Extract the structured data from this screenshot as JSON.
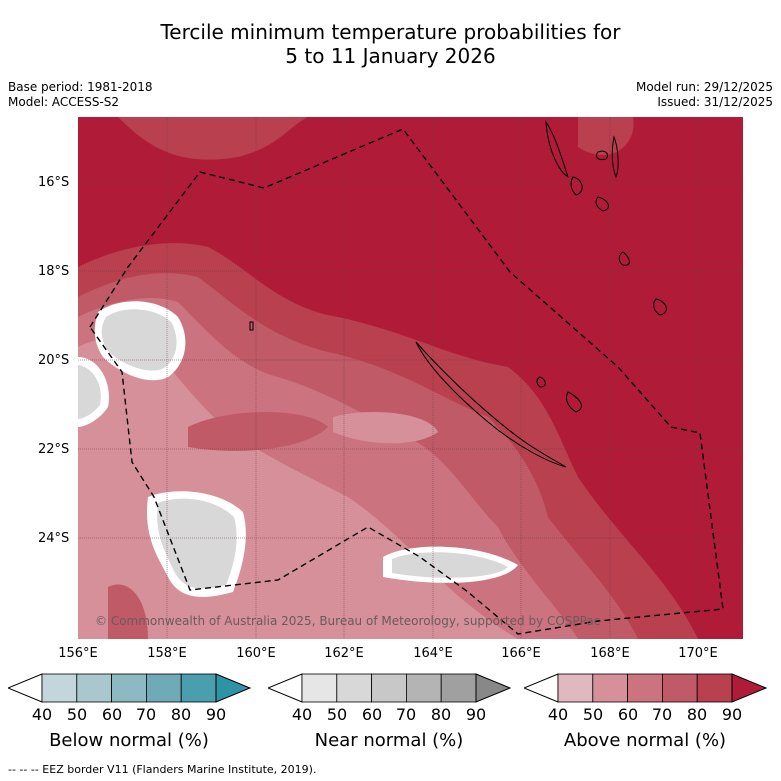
{
  "title_line1": "Tercile minimum temperature probabilities for",
  "title_line2": "5 to 11 January 2026",
  "base_period": "Base period: 1981-2018",
  "model": "Model: ACCESS-S2",
  "model_run": "Model run: 29/12/2025",
  "issued": "Issued: 31/12/2025",
  "lat_labels": [
    "16°S",
    "18°S",
    "20°S",
    "22°S",
    "24°S"
  ],
  "lon_labels": [
    "156°E",
    "158°E",
    "160°E",
    "162°E",
    "164°E",
    "166°E",
    "168°E",
    "170°E"
  ],
  "copyright": "© Commonwealth of Australia 2025, Bureau of Meteorology, supported by COSPPac",
  "colorbar_ticks": [
    "40",
    "50",
    "60",
    "70",
    "80",
    "90"
  ],
  "below_label": "Below normal (%)",
  "near_label": "Near normal (%)",
  "above_label": "Above normal (%)",
  "footer": "--  --  -- EEZ border V11 (Flanders Marine Institute, 2019).",
  "colors": {
    "below": [
      "#c3d6dc",
      "#a8c8ce",
      "#8cb9c2",
      "#6faab6",
      "#4a9eae",
      "#2e93a5"
    ],
    "near": [
      "#e6e6e6",
      "#d8d8d8",
      "#c8c8c8",
      "#b4b4b4",
      "#a0a0a0",
      "#888888"
    ],
    "above": [
      "#e2b8bf",
      "#d6909a",
      "#cb737e",
      "#c05a66",
      "#b8404f",
      "#b01c38"
    ]
  }
}
